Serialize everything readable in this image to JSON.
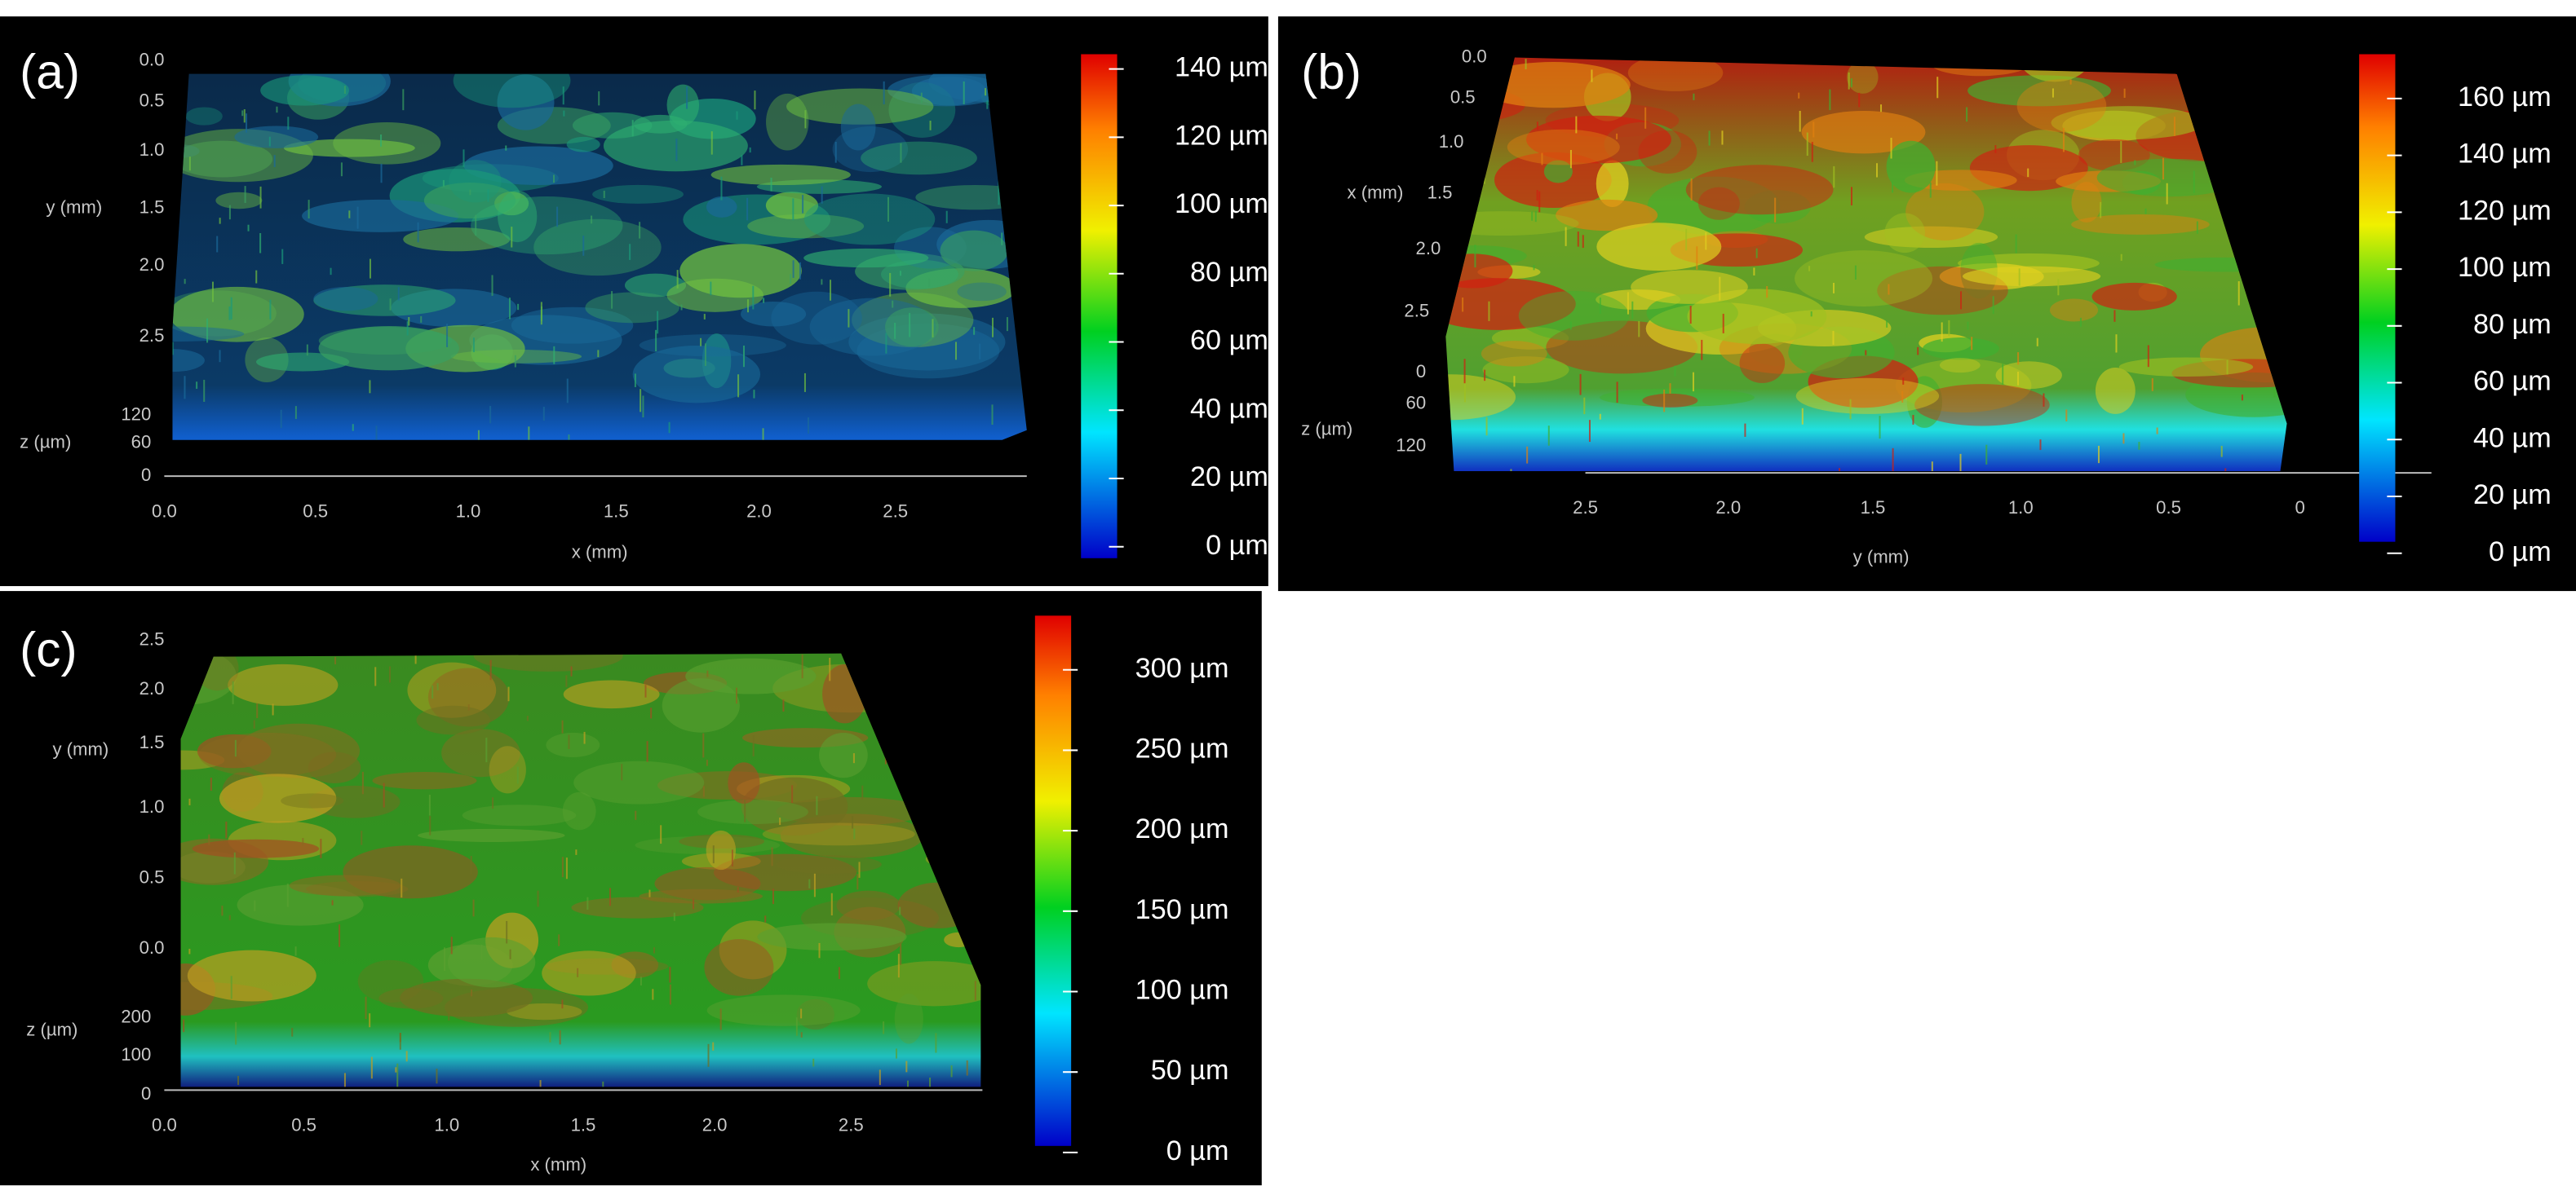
{
  "panels": [
    {
      "label": "(a)",
      "colorbar": [
        "140 µm",
        "120 µm",
        "100 µm",
        "80 µm",
        "60 µm",
        "40 µm",
        "20 µm",
        "0 µm"
      ],
      "vertical_axis": {
        "title": "y (mm)",
        "ticks": [
          "0.0",
          "0.5",
          "1.0",
          "1.5",
          "2.0",
          "2.5"
        ]
      },
      "depth_axis": {
        "title": "z (µm)",
        "ticks": [
          "120",
          "60",
          "0"
        ]
      },
      "horizontal_axis": {
        "title": "x (mm)",
        "ticks": [
          "0.0",
          "0.5",
          "1.0",
          "1.5",
          "2.0",
          "2.5"
        ]
      }
    },
    {
      "label": "(b)",
      "colorbar": [
        "160 µm",
        "140 µm",
        "120 µm",
        "100 µm",
        "80 µm",
        "60 µm",
        "40 µm",
        "20 µm",
        "0 µm"
      ],
      "vertical_axis": {
        "title": "x (mm)",
        "ticks": [
          "0.0",
          "0.5",
          "1.0",
          "1.5",
          "2.0",
          "2.5"
        ]
      },
      "depth_axis": {
        "title": "z (µm)",
        "ticks": [
          "0",
          "60",
          "120"
        ]
      },
      "horizontal_axis": {
        "title": "y (mm)",
        "ticks": [
          "2.5",
          "2.0",
          "1.5",
          "1.0",
          "0.5",
          "0"
        ]
      }
    },
    {
      "label": "(c)",
      "colorbar": [
        "300 µm",
        "250 µm",
        "200 µm",
        "150 µm",
        "100 µm",
        "50 µm",
        "0 µm"
      ],
      "vertical_axis": {
        "title": "y (mm)",
        "ticks": [
          "2.5",
          "2.0",
          "1.5",
          "1.0",
          "0.5",
          "0.0"
        ]
      },
      "depth_axis": {
        "title": "z (µm)",
        "ticks": [
          "200",
          "100",
          "0"
        ]
      },
      "horizontal_axis": {
        "title": "x (mm)",
        "ticks": [
          "0.0",
          "0.5",
          "1.0",
          "1.5",
          "2.0",
          "2.5"
        ]
      }
    }
  ]
}
